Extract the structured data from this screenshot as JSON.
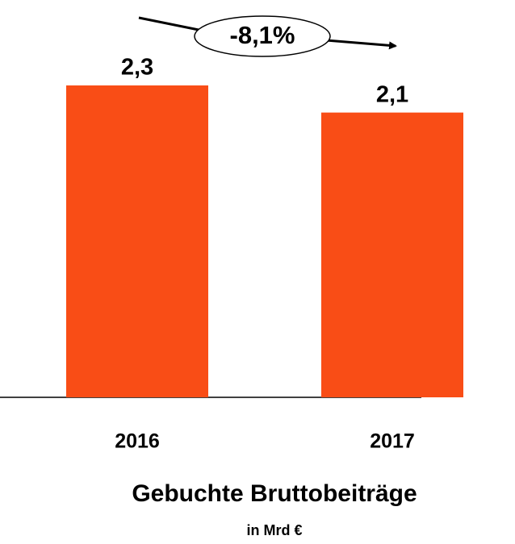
{
  "chart_data": {
    "type": "bar",
    "title": "Gebuchte Bruttobeiträge",
    "subtitle": "in Mrd €",
    "annotation": "-8,1%",
    "categories": [
      "2016",
      "2017"
    ],
    "values": [
      2.3,
      2.1
    ],
    "value_labels": [
      "2,3",
      "2,1"
    ],
    "color": "#f94d16"
  }
}
